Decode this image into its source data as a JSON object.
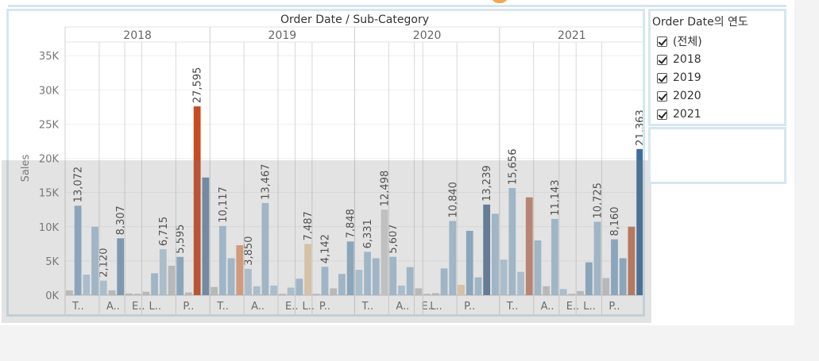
{
  "chart_data": {
    "type": "bar",
    "title": "Order Date / Sub-Category",
    "ylabel": "Sales",
    "ylim": [
      0,
      37000
    ],
    "yticks": [
      0,
      5000,
      10000,
      15000,
      20000,
      25000,
      30000,
      35000
    ],
    "ytick_labels": [
      "0K",
      "5K",
      "10K",
      "15K",
      "20K",
      "25K",
      "30K",
      "35K"
    ],
    "years": [
      "2018",
      "2019",
      "2020",
      "2021"
    ],
    "group_labels": [
      "T..",
      "A..",
      "E..",
      "L..",
      "P..",
      "T..",
      "A..",
      "E..",
      "L..",
      "P..",
      "T..",
      "A..",
      "E..",
      "L..",
      "P..",
      "T..",
      "A..",
      "E..",
      "L..",
      "P.."
    ],
    "bars": [
      {
        "year": "2018",
        "value": 700,
        "color": "#c8c8c8",
        "label": ""
      },
      {
        "year": "2018",
        "value": 13072,
        "color": "#8fb0cc",
        "label": "13,072"
      },
      {
        "year": "2018",
        "value": 3000,
        "color": "#b8cfe0",
        "label": ""
      },
      {
        "year": "2018",
        "value": 10000,
        "color": "#a9c4da",
        "label": ""
      },
      {
        "year": "2018",
        "value": 2120,
        "color": "#b8cfe0",
        "label": "2,120"
      },
      {
        "year": "2018",
        "value": 700,
        "color": "#c8c8c8",
        "label": ""
      },
      {
        "year": "2018",
        "value": 8307,
        "color": "#7e9fc0",
        "label": "8,307"
      },
      {
        "year": "2018",
        "value": 250,
        "color": "#c8c8c8",
        "label": ""
      },
      {
        "year": "2018",
        "value": 200,
        "color": "#c8c8c8",
        "label": ""
      },
      {
        "year": "2018",
        "value": 500,
        "color": "#c8c8c8",
        "label": ""
      },
      {
        "year": "2018",
        "value": 3200,
        "color": "#a9c4da",
        "label": ""
      },
      {
        "year": "2018",
        "value": 6715,
        "color": "#b8cfe0",
        "label": "6,715"
      },
      {
        "year": "2018",
        "value": 4300,
        "color": "#c8c8c8",
        "label": ""
      },
      {
        "year": "2018",
        "value": 5595,
        "color": "#8fb0cc",
        "label": "5,595"
      },
      {
        "year": "2018",
        "value": 400,
        "color": "#c8c8c8",
        "label": ""
      },
      {
        "year": "2018",
        "value": 27595,
        "color": "#c84a22",
        "label": "27,595"
      },
      {
        "year": "2018",
        "value": 17200,
        "color": "#6f8eac",
        "label": ""
      },
      {
        "year": "2019",
        "value": 1200,
        "color": "#c8c8c8",
        "label": ""
      },
      {
        "year": "2019",
        "value": 10117,
        "color": "#a9c4da",
        "label": "10,117"
      },
      {
        "year": "2019",
        "value": 5400,
        "color": "#a9c4da",
        "label": ""
      },
      {
        "year": "2019",
        "value": 7300,
        "color": "#e7a27c",
        "label": ""
      },
      {
        "year": "2019",
        "value": 3850,
        "color": "#b8cfe0",
        "label": "3,850"
      },
      {
        "year": "2019",
        "value": 1300,
        "color": "#b8cfe0",
        "label": ""
      },
      {
        "year": "2019",
        "value": 13467,
        "color": "#a9c4da",
        "label": "13,467"
      },
      {
        "year": "2019",
        "value": 1400,
        "color": "#b8cfe0",
        "label": ""
      },
      {
        "year": "2019",
        "value": 200,
        "color": "#c8c8c8",
        "label": ""
      },
      {
        "year": "2019",
        "value": 1100,
        "color": "#b8cfe0",
        "label": ""
      },
      {
        "year": "2019",
        "value": 2400,
        "color": "#a9c4da",
        "label": ""
      },
      {
        "year": "2019",
        "value": 7487,
        "color": "#eed4b0",
        "label": "7,487"
      },
      {
        "year": "2019",
        "value": 200,
        "color": "#c8c8c8",
        "label": ""
      },
      {
        "year": "2019",
        "value": 4142,
        "color": "#a9c4da",
        "label": "4,142"
      },
      {
        "year": "2019",
        "value": 1000,
        "color": "#c8c8c8",
        "label": ""
      },
      {
        "year": "2019",
        "value": 3100,
        "color": "#a9c4da",
        "label": ""
      },
      {
        "year": "2019",
        "value": 7848,
        "color": "#8fb0cc",
        "label": "7,848"
      },
      {
        "year": "2020",
        "value": 3700,
        "color": "#b8cfe0",
        "label": ""
      },
      {
        "year": "2020",
        "value": 6331,
        "color": "#a9c4da",
        "label": "6,331"
      },
      {
        "year": "2020",
        "value": 5400,
        "color": "#a9c4da",
        "label": ""
      },
      {
        "year": "2020",
        "value": 12498,
        "color": "#d3d3d3",
        "label": "12,498"
      },
      {
        "year": "2020",
        "value": 5607,
        "color": "#a9c4da",
        "label": "5,607"
      },
      {
        "year": "2020",
        "value": 1400,
        "color": "#b8cfe0",
        "label": ""
      },
      {
        "year": "2020",
        "value": 4100,
        "color": "#a9c4da",
        "label": ""
      },
      {
        "year": "2020",
        "value": 1000,
        "color": "#c8c8c8",
        "label": ""
      },
      {
        "year": "2020",
        "value": 200,
        "color": "#c8c8c8",
        "label": ""
      },
      {
        "year": "2020",
        "value": 300,
        "color": "#c8c8c8",
        "label": ""
      },
      {
        "year": "2020",
        "value": 3900,
        "color": "#a9c4da",
        "label": ""
      },
      {
        "year": "2020",
        "value": 10840,
        "color": "#a9c4da",
        "label": "10,840"
      },
      {
        "year": "2020",
        "value": 1500,
        "color": "#eed4b0",
        "label": ""
      },
      {
        "year": "2020",
        "value": 9400,
        "color": "#8fb0cc",
        "label": ""
      },
      {
        "year": "2020",
        "value": 2600,
        "color": "#a9c4da",
        "label": ""
      },
      {
        "year": "2020",
        "value": 13239,
        "color": "#5e7b9a",
        "label": "13,239"
      },
      {
        "year": "2020",
        "value": 11900,
        "color": "#a9c4da",
        "label": ""
      },
      {
        "year": "2021",
        "value": 5200,
        "color": "#b8cfe0",
        "label": ""
      },
      {
        "year": "2021",
        "value": 15656,
        "color": "#a9c4da",
        "label": "15,656"
      },
      {
        "year": "2021",
        "value": 3400,
        "color": "#b8cfe0",
        "label": ""
      },
      {
        "year": "2021",
        "value": 14300,
        "color": "#c78770",
        "label": ""
      },
      {
        "year": "2021",
        "value": 8000,
        "color": "#a9c4da",
        "label": ""
      },
      {
        "year": "2021",
        "value": 1300,
        "color": "#c8c8c8",
        "label": ""
      },
      {
        "year": "2021",
        "value": 11143,
        "color": "#a9c4da",
        "label": "11,143"
      },
      {
        "year": "2021",
        "value": 900,
        "color": "#b8cfe0",
        "label": ""
      },
      {
        "year": "2021",
        "value": 200,
        "color": "#c8c8c8",
        "label": ""
      },
      {
        "year": "2021",
        "value": 600,
        "color": "#c8c8c8",
        "label": ""
      },
      {
        "year": "2021",
        "value": 4800,
        "color": "#8fb0cc",
        "label": ""
      },
      {
        "year": "2021",
        "value": 10725,
        "color": "#a9c4da",
        "label": "10,725"
      },
      {
        "year": "2021",
        "value": 2500,
        "color": "#c8c8c8",
        "label": ""
      },
      {
        "year": "2021",
        "value": 8160,
        "color": "#8fb0cc",
        "label": "8,160"
      },
      {
        "year": "2021",
        "value": 5400,
        "color": "#8fb0cc",
        "label": ""
      },
      {
        "year": "2021",
        "value": 10000,
        "color": "#c67658",
        "label": ""
      },
      {
        "year": "2021",
        "value": 21363,
        "color": "#3f6e9c",
        "label": "21,363"
      }
    ],
    "grid": true,
    "legend": "none"
  },
  "filter": {
    "title": "Order Date의 연도",
    "items": [
      {
        "label": "(전체)",
        "checked": true
      },
      {
        "label": "2018",
        "checked": true
      },
      {
        "label": "2019",
        "checked": true
      },
      {
        "label": "2020",
        "checked": true
      },
      {
        "label": "2021",
        "checked": true
      }
    ]
  }
}
